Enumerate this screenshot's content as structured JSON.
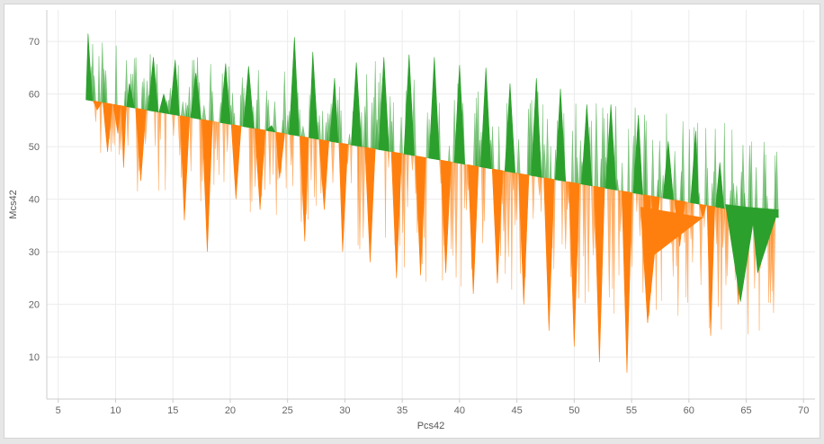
{
  "chart_data": {
    "type": "area",
    "xlabel": "Pcs42",
    "ylabel": "Mcs42",
    "xlim": [
      4,
      71
    ],
    "ylim": [
      2,
      76
    ],
    "x_ticks": [
      "5",
      "10",
      "15",
      "20",
      "25",
      "30",
      "35",
      "40",
      "45",
      "50",
      "55",
      "60",
      "65",
      "70"
    ],
    "y_ticks": [
      "10",
      "20",
      "30",
      "40",
      "50",
      "60",
      "70"
    ],
    "grid": true,
    "legend": "none",
    "colors": {
      "above": "#2ca02c",
      "below": "#ff7f0e",
      "grid": "#ebebeb",
      "axis": "#cccccc"
    },
    "baseline": {
      "x": [
        7.2,
        67.8
      ],
      "y": [
        59,
        36.5
      ]
    },
    "spikes": [
      {
        "x": 7.6,
        "y": 71.5
      },
      {
        "x": 8.4,
        "y": 57.0
      },
      {
        "x": 9.3,
        "y": 49.0
      },
      {
        "x": 10.2,
        "y": 52.5
      },
      {
        "x": 10.7,
        "y": 46.0
      },
      {
        "x": 11.2,
        "y": 62.0
      },
      {
        "x": 12.2,
        "y": 43.5
      },
      {
        "x": 13.3,
        "y": 67.0
      },
      {
        "x": 14.2,
        "y": 60.0
      },
      {
        "x": 15.2,
        "y": 66.5
      },
      {
        "x": 16.0,
        "y": 36.0
      },
      {
        "x": 17.0,
        "y": 64.0
      },
      {
        "x": 18.0,
        "y": 30.0
      },
      {
        "x": 19.6,
        "y": 65.8
      },
      {
        "x": 20.5,
        "y": 40.0
      },
      {
        "x": 21.6,
        "y": 65.3
      },
      {
        "x": 22.6,
        "y": 38.0
      },
      {
        "x": 23.6,
        "y": 54.0
      },
      {
        "x": 24.3,
        "y": 44.0
      },
      {
        "x": 25.6,
        "y": 70.8
      },
      {
        "x": 26.5,
        "y": 32.0
      },
      {
        "x": 27.2,
        "y": 68.0
      },
      {
        "x": 28.2,
        "y": 38.0
      },
      {
        "x": 29.1,
        "y": 63.0
      },
      {
        "x": 29.8,
        "y": 30.0
      },
      {
        "x": 31.0,
        "y": 66.0
      },
      {
        "x": 32.2,
        "y": 28.0
      },
      {
        "x": 33.4,
        "y": 67.0
      },
      {
        "x": 34.5,
        "y": 25.0
      },
      {
        "x": 35.6,
        "y": 67.5
      },
      {
        "x": 36.6,
        "y": 25.5
      },
      {
        "x": 37.8,
        "y": 67.0
      },
      {
        "x": 38.8,
        "y": 26.0
      },
      {
        "x": 40.0,
        "y": 65.5
      },
      {
        "x": 41.2,
        "y": 22.0
      },
      {
        "x": 42.3,
        "y": 65.0
      },
      {
        "x": 43.3,
        "y": 24.0
      },
      {
        "x": 44.4,
        "y": 62.0
      },
      {
        "x": 45.6,
        "y": 20.0
      },
      {
        "x": 46.7,
        "y": 63.0
      },
      {
        "x": 47.8,
        "y": 15.0
      },
      {
        "x": 48.8,
        "y": 61.0
      },
      {
        "x": 50.0,
        "y": 12.0
      },
      {
        "x": 51.1,
        "y": 58.0
      },
      {
        "x": 52.2,
        "y": 9.0
      },
      {
        "x": 53.2,
        "y": 58.0
      },
      {
        "x": 54.6,
        "y": 7.0
      },
      {
        "x": 55.6,
        "y": 56.0
      },
      {
        "x": 56.4,
        "y": 16.5
      },
      {
        "x": 57.0,
        "y": 29.5
      },
      {
        "x": 58.2,
        "y": 51.0
      },
      {
        "x": 59.2,
        "y": 31.0
      },
      {
        "x": 60.6,
        "y": 53.0
      },
      {
        "x": 61.2,
        "y": 36.5
      },
      {
        "x": 61.9,
        "y": 14.0
      },
      {
        "x": 62.7,
        "y": 47.0
      },
      {
        "x": 63.5,
        "y": 38.0
      },
      {
        "x": 64.3,
        "y": 20.0
      },
      {
        "x": 65.0,
        "y": 28.5
      },
      {
        "x": 65.6,
        "y": 35.5
      },
      {
        "x": 66.0,
        "y": 26.0
      },
      {
        "x": 67.8,
        "y": 38.0
      }
    ]
  }
}
